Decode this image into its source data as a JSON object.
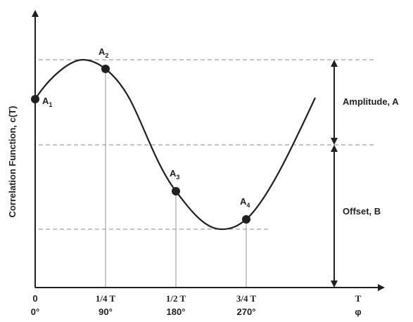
{
  "diagram": {
    "y_axis_label": "Correlation Function, c(T)",
    "x_axis_end_label_top": "T",
    "x_axis_end_label_bottom": "φ",
    "ticks": [
      {
        "top": "0",
        "bottom": "0°"
      },
      {
        "top": "1/4 T",
        "bottom": "90°"
      },
      {
        "top": "1/2 T",
        "bottom": "180°"
      },
      {
        "top": "3/4 T",
        "bottom": "270°"
      }
    ],
    "points": [
      {
        "base": "A",
        "sub": "1"
      },
      {
        "base": "A",
        "sub": "2"
      },
      {
        "base": "A",
        "sub": "3"
      },
      {
        "base": "A",
        "sub": "4"
      }
    ],
    "amplitude_label": "Amplitude, A",
    "offset_label": "Offset, B",
    "colors": {
      "ink": "#231f20",
      "guide": "#8a8a8a"
    }
  }
}
